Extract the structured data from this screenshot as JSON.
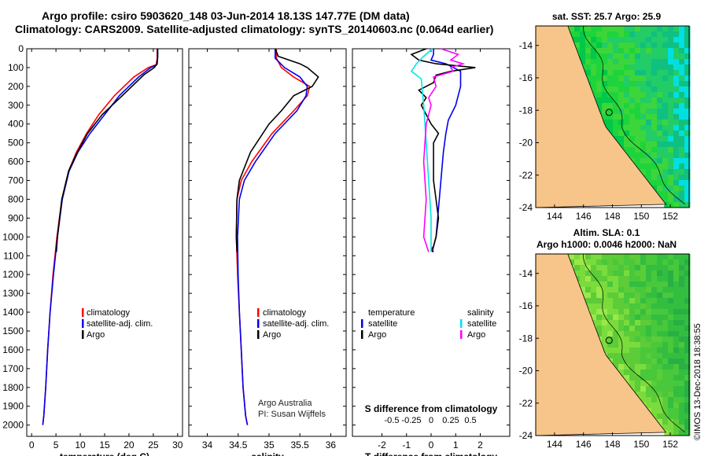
{
  "header": {
    "title_line1": "Argo profile: csiro 5903620_148 03-Jun-2014 18.13S 147.77E (DM data)",
    "title_line2": "Climatology: CARS2009. Satellite-adjusted climatology: synTS_20140603.nc (0.064d earlier)"
  },
  "colors": {
    "climatology": "#ff0000",
    "satellite": "#0000ee",
    "argo": "#000000",
    "cyan": "#00e5e5",
    "magenta": "#ff00ff",
    "land": "#f7c48a"
  },
  "legend": {
    "climatology": "climatology",
    "satellite_adj": "satellite-adj. clim.",
    "argo": "Argo"
  },
  "diff_legend": {
    "temperature": "temperature",
    "salinity": "salinity",
    "satellite": "satellite",
    "argo": "Argo"
  },
  "credit": {
    "line1": "Argo Australia",
    "line2": "PI: Susan Wijffels"
  },
  "right_panels": {
    "top_title": "sat. SST: 25.7 Argo: 25.9",
    "bottom_title1": "Altim. SLA: 0.1",
    "bottom_title2": "Argo h1000: 0.0046 h2000: NaN",
    "lon_ticks": [
      "144",
      "146",
      "148",
      "150",
      "152"
    ],
    "lat_ticks": [
      "-14",
      "-16",
      "-18",
      "-20",
      "-22",
      "-24"
    ]
  },
  "side_text": "©IMOS 13-Dec-2018 18:38:55",
  "chart_data": [
    {
      "type": "line",
      "panel": "temperature",
      "xlabel": "temperature (deg C)",
      "ylabel": "",
      "xlim": [
        -1,
        31
      ],
      "ylim": [
        0,
        2060
      ],
      "xticks": [
        "0",
        "5",
        "10",
        "15",
        "20",
        "25",
        "30"
      ],
      "yticks": [
        "0",
        "100",
        "200",
        "300",
        "400",
        "500",
        "600",
        "700",
        "800",
        "900",
        "1000",
        "1100",
        "1200",
        "1300",
        "1400",
        "1500",
        "1600",
        "1700",
        "1800",
        "1900",
        "2000"
      ],
      "series": [
        {
          "name": "climatology",
          "x": [
            25.8,
            25.8,
            25.6,
            24.0,
            21.0,
            17.0,
            13.8,
            11.3,
            9.2,
            7.6,
            6.2,
            5.2,
            4.4,
            3.8,
            3.3,
            2.9,
            2.5,
            2.3
          ],
          "y": [
            0,
            50,
            85,
            100,
            150,
            250,
            350,
            450,
            550,
            650,
            800,
            1000,
            1200,
            1400,
            1600,
            1800,
            1950,
            2000
          ]
        },
        {
          "name": "satellite-adj. clim.",
          "x": [
            25.9,
            25.9,
            25.7,
            24.5,
            22.0,
            18.0,
            15.0,
            12.0,
            9.5,
            7.7,
            6.3,
            5.3,
            4.5,
            3.8,
            3.3,
            2.9,
            2.5,
            2.3
          ],
          "y": [
            0,
            50,
            85,
            100,
            150,
            250,
            350,
            450,
            550,
            650,
            800,
            1000,
            1200,
            1400,
            1600,
            1800,
            1950,
            2000
          ]
        },
        {
          "name": "Argo",
          "x": [
            25.9,
            25.9,
            25.8,
            25.2,
            23.0,
            19.0,
            14.5,
            11.5,
            9.4,
            7.6,
            6.2,
            5.3,
            5.1
          ],
          "y": [
            0,
            40,
            80,
            100,
            140,
            240,
            350,
            450,
            550,
            650,
            800,
            1000,
            1080
          ]
        }
      ]
    },
    {
      "type": "line",
      "panel": "salinity",
      "xlabel": "salinity",
      "ylabel": "",
      "xlim": [
        33.7,
        36.25
      ],
      "ylim": [
        0,
        2060
      ],
      "xticks": [
        "34",
        "34.5",
        "35",
        "35.5",
        "36"
      ],
      "series": [
        {
          "name": "climatology",
          "x": [
            35.12,
            35.12,
            35.2,
            35.4,
            35.66,
            35.62,
            35.4,
            35.05,
            34.72,
            34.55,
            34.48,
            34.47,
            34.49,
            34.52,
            34.55,
            34.58,
            34.62,
            34.65
          ],
          "y": [
            0,
            50,
            100,
            150,
            200,
            250,
            330,
            450,
            600,
            700,
            800,
            1000,
            1200,
            1400,
            1600,
            1800,
            1950,
            2000
          ]
        },
        {
          "name": "satellite-adj. clim.",
          "x": [
            35.1,
            35.1,
            35.25,
            35.5,
            35.62,
            35.6,
            35.45,
            35.1,
            34.78,
            34.6,
            34.52,
            34.49,
            34.5,
            34.52,
            34.55,
            34.58,
            34.62,
            34.65
          ],
          "y": [
            0,
            50,
            100,
            150,
            200,
            250,
            330,
            450,
            600,
            700,
            800,
            1000,
            1200,
            1400,
            1600,
            1800,
            1950,
            2000
          ]
        },
        {
          "name": "Argo",
          "x": [
            35.1,
            35.15,
            35.5,
            35.62,
            35.8,
            35.7,
            35.4,
            35.2,
            35.0,
            34.7,
            34.52,
            34.48,
            34.47,
            34.48
          ],
          "y": [
            0,
            40,
            80,
            100,
            150,
            200,
            250,
            330,
            400,
            550,
            700,
            800,
            1000,
            1080
          ]
        }
      ]
    },
    {
      "type": "line",
      "panel": "difference",
      "xlabel": "T difference from climatology",
      "x2label": "S difference from climatology",
      "xlim": [
        -3.2,
        3.2
      ],
      "ylim": [
        0,
        2060
      ],
      "xticks": [
        "-2",
        "-1",
        "0",
        "1",
        "2"
      ],
      "x2ticks": [
        "-0.5",
        "-0.25",
        "0",
        "0.25",
        "0.5"
      ],
      "series": [
        {
          "name": "temperature satellite",
          "x": [
            0.1,
            0.1,
            0.0,
            0.6,
            1.2,
            1.2,
            1.0,
            0.7,
            0.6,
            0.5,
            0.4,
            0.3,
            0.2,
            0.1,
            0.05
          ],
          "y": [
            0,
            30,
            60,
            80,
            120,
            200,
            300,
            380,
            450,
            550,
            700,
            850,
            1000,
            1050,
            1080
          ]
        },
        {
          "name": "temperature Argo",
          "x": [
            -0.2,
            -0.8,
            -0.5,
            0.2,
            1.8,
            0.8,
            0.2,
            0.1,
            -0.5,
            -0.2,
            -0.4,
            -0.2,
            0.0,
            0.3,
            0.1,
            0.1,
            0.3,
            0.2,
            0.1,
            0.0,
            0.1
          ],
          "y": [
            0,
            30,
            60,
            80,
            100,
            120,
            140,
            180,
            220,
            260,
            300,
            350,
            400,
            450,
            500,
            700,
            900,
            1000,
            1050,
            1070,
            1080
          ]
        },
        {
          "name": "salinity satellite",
          "x": [
            0.05,
            -0.3,
            -0.6,
            -0.8,
            -0.4,
            -0.3,
            -0.2,
            -0.1,
            0.0,
            0.0,
            0.0
          ],
          "y": [
            0,
            40,
            80,
            120,
            160,
            300,
            500,
            700,
            900,
            1050,
            1080
          ]
        },
        {
          "name": "salinity Argo",
          "x": [
            0.4,
            1.1,
            0.8,
            1.3,
            0.8,
            0.9,
            0.1,
            0.2,
            -0.1,
            0.0,
            -0.2,
            -0.3,
            -0.2,
            -0.3,
            -0.1
          ],
          "y": [
            0,
            30,
            60,
            80,
            100,
            120,
            150,
            200,
            260,
            300,
            400,
            600,
            800,
            1000,
            1080
          ]
        }
      ]
    },
    {
      "type": "heatmap",
      "panel": "sst-map",
      "title": "sat. SST: 25.7 Argo: 25.9",
      "xlim": [
        142.7,
        153.3
      ],
      "ylim": [
        -24,
        -12.8
      ],
      "argo_position": {
        "lon": 147.77,
        "lat": -18.13
      }
    },
    {
      "type": "heatmap",
      "panel": "sla-map",
      "title": "Altim. SLA: 0.1 / Argo h1000: 0.0046 h2000: NaN",
      "xlim": [
        142.7,
        153.3
      ],
      "ylim": [
        -24,
        -12.8
      ],
      "argo_position": {
        "lon": 147.77,
        "lat": -18.13
      }
    }
  ]
}
